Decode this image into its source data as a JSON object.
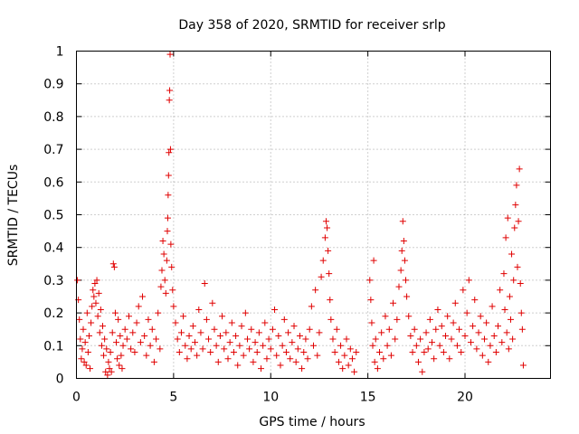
{
  "chart_data": {
    "type": "scatter",
    "title": "Day 358 of 2020, SRMTID for receiver srlp",
    "xlabel": "GPS time / hours",
    "ylabel": "SRMTID / TECUs",
    "xlim": [
      0,
      24.4
    ],
    "ylim": [
      0,
      1
    ],
    "x_ticks": [
      0,
      5,
      10,
      15,
      20
    ],
    "x_tick_labels": [
      "0",
      "5",
      "10",
      "15",
      "20"
    ],
    "y_ticks": [
      0,
      0.1,
      0.2,
      0.3,
      0.4,
      0.5,
      0.6,
      0.7,
      0.8,
      0.9,
      1
    ],
    "y_tick_labels": [
      "0",
      "0.1",
      "0.2",
      "0.3",
      "0.4",
      "0.5",
      "0.6",
      "0.7",
      "0.8",
      "0.9",
      "1"
    ],
    "grid": true,
    "marker": "+",
    "marker_color": "#e00000",
    "series": [
      {
        "name": "SRMTID",
        "points": [
          [
            0.05,
            0.3
          ],
          [
            0.1,
            0.24
          ],
          [
            0.15,
            0.18
          ],
          [
            0.2,
            0.12
          ],
          [
            0.25,
            0.06
          ],
          [
            0.3,
            0.09
          ],
          [
            0.35,
            0.15
          ],
          [
            0.4,
            0.05
          ],
          [
            0.45,
            0.11
          ],
          [
            0.5,
            0.04
          ],
          [
            0.55,
            0.2
          ],
          [
            0.6,
            0.08
          ],
          [
            0.65,
            0.13
          ],
          [
            0.7,
            0.03
          ],
          [
            0.75,
            0.17
          ],
          [
            0.8,
            0.22
          ],
          [
            0.85,
            0.27
          ],
          [
            0.9,
            0.25
          ],
          [
            0.95,
            0.29
          ],
          [
            1.0,
            0.23
          ],
          [
            1.05,
            0.3
          ],
          [
            1.1,
            0.19
          ],
          [
            1.15,
            0.26
          ],
          [
            1.2,
            0.14
          ],
          [
            1.25,
            0.21
          ],
          [
            1.3,
            0.1
          ],
          [
            1.35,
            0.16
          ],
          [
            1.4,
            0.07
          ],
          [
            1.45,
            0.12
          ],
          [
            1.5,
            0.02
          ],
          [
            1.55,
            0.09
          ],
          [
            1.6,
            0.01
          ],
          [
            1.65,
            0.05
          ],
          [
            1.7,
            0.03
          ],
          [
            1.75,
            0.08
          ],
          [
            1.8,
            0.02
          ],
          [
            1.85,
            0.14
          ],
          [
            1.9,
            0.35
          ],
          [
            1.95,
            0.34
          ],
          [
            2.0,
            0.2
          ],
          [
            2.05,
            0.11
          ],
          [
            2.1,
            0.06
          ],
          [
            2.15,
            0.18
          ],
          [
            2.2,
            0.04
          ],
          [
            2.25,
            0.13
          ],
          [
            2.3,
            0.07
          ],
          [
            2.35,
            0.03
          ],
          [
            2.4,
            0.1
          ],
          [
            2.5,
            0.15
          ],
          [
            2.6,
            0.12
          ],
          [
            2.7,
            0.19
          ],
          [
            2.8,
            0.09
          ],
          [
            2.9,
            0.14
          ],
          [
            3.0,
            0.08
          ],
          [
            3.1,
            0.17
          ],
          [
            3.2,
            0.22
          ],
          [
            3.3,
            0.11
          ],
          [
            3.4,
            0.25
          ],
          [
            3.5,
            0.13
          ],
          [
            3.6,
            0.07
          ],
          [
            3.7,
            0.18
          ],
          [
            3.8,
            0.1
          ],
          [
            3.9,
            0.15
          ],
          [
            4.0,
            0.05
          ],
          [
            4.1,
            0.12
          ],
          [
            4.2,
            0.2
          ],
          [
            4.3,
            0.09
          ],
          [
            4.35,
            0.28
          ],
          [
            4.4,
            0.33
          ],
          [
            4.45,
            0.42
          ],
          [
            4.5,
            0.38
          ],
          [
            4.55,
            0.3
          ],
          [
            4.6,
            0.26
          ],
          [
            4.65,
            0.36
          ],
          [
            4.68,
            0.45
          ],
          [
            4.7,
            0.49
          ],
          [
            4.72,
            0.56
          ],
          [
            4.74,
            0.62
          ],
          [
            4.76,
            0.69
          ],
          [
            4.78,
            0.85
          ],
          [
            4.8,
            0.88
          ],
          [
            4.82,
            0.99
          ],
          [
            4.84,
            0.7
          ],
          [
            4.86,
            0.41
          ],
          [
            4.9,
            0.34
          ],
          [
            4.95,
            0.27
          ],
          [
            5.0,
            0.22
          ],
          [
            5.1,
            0.17
          ],
          [
            5.2,
            0.12
          ],
          [
            5.3,
            0.08
          ],
          [
            5.4,
            0.14
          ],
          [
            5.5,
            0.19
          ],
          [
            5.6,
            0.1
          ],
          [
            5.7,
            0.06
          ],
          [
            5.8,
            0.13
          ],
          [
            5.9,
            0.09
          ],
          [
            6.0,
            0.16
          ],
          [
            6.1,
            0.11
          ],
          [
            6.2,
            0.07
          ],
          [
            6.3,
            0.21
          ],
          [
            6.4,
            0.14
          ],
          [
            6.5,
            0.09
          ],
          [
            6.6,
            0.29
          ],
          [
            6.7,
            0.18
          ],
          [
            6.8,
            0.12
          ],
          [
            6.9,
            0.08
          ],
          [
            7.0,
            0.23
          ],
          [
            7.1,
            0.15
          ],
          [
            7.2,
            0.1
          ],
          [
            7.3,
            0.05
          ],
          [
            7.4,
            0.13
          ],
          [
            7.5,
            0.19
          ],
          [
            7.6,
            0.09
          ],
          [
            7.7,
            0.14
          ],
          [
            7.8,
            0.06
          ],
          [
            7.9,
            0.11
          ],
          [
            8.0,
            0.17
          ],
          [
            8.1,
            0.08
          ],
          [
            8.2,
            0.13
          ],
          [
            8.3,
            0.04
          ],
          [
            8.4,
            0.1
          ],
          [
            8.5,
            0.16
          ],
          [
            8.6,
            0.07
          ],
          [
            8.7,
            0.2
          ],
          [
            8.8,
            0.12
          ],
          [
            8.9,
            0.09
          ],
          [
            9.0,
            0.15
          ],
          [
            9.1,
            0.05
          ],
          [
            9.2,
            0.11
          ],
          [
            9.3,
            0.08
          ],
          [
            9.4,
            0.14
          ],
          [
            9.5,
            0.03
          ],
          [
            9.6,
            0.1
          ],
          [
            9.7,
            0.17
          ],
          [
            9.8,
            0.06
          ],
          [
            9.9,
            0.12
          ],
          [
            10.0,
            0.09
          ],
          [
            10.1,
            0.15
          ],
          [
            10.2,
            0.21
          ],
          [
            10.3,
            0.07
          ],
          [
            10.4,
            0.13
          ],
          [
            10.5,
            0.04
          ],
          [
            10.6,
            0.1
          ],
          [
            10.7,
            0.18
          ],
          [
            10.8,
            0.08
          ],
          [
            10.9,
            0.14
          ],
          [
            11.0,
            0.06
          ],
          [
            11.1,
            0.11
          ],
          [
            11.2,
            0.16
          ],
          [
            11.3,
            0.05
          ],
          [
            11.4,
            0.09
          ],
          [
            11.5,
            0.13
          ],
          [
            11.6,
            0.03
          ],
          [
            11.7,
            0.08
          ],
          [
            11.8,
            0.12
          ],
          [
            11.9,
            0.06
          ],
          [
            12.0,
            0.15
          ],
          [
            12.1,
            0.22
          ],
          [
            12.2,
            0.1
          ],
          [
            12.3,
            0.27
          ],
          [
            12.4,
            0.07
          ],
          [
            12.5,
            0.14
          ],
          [
            12.6,
            0.31
          ],
          [
            12.7,
            0.36
          ],
          [
            12.8,
            0.43
          ],
          [
            12.85,
            0.48
          ],
          [
            12.9,
            0.46
          ],
          [
            12.95,
            0.39
          ],
          [
            13.0,
            0.32
          ],
          [
            13.05,
            0.24
          ],
          [
            13.1,
            0.18
          ],
          [
            13.2,
            0.12
          ],
          [
            13.3,
            0.08
          ],
          [
            13.4,
            0.15
          ],
          [
            13.5,
            0.05
          ],
          [
            13.6,
            0.1
          ],
          [
            13.7,
            0.03
          ],
          [
            13.8,
            0.07
          ],
          [
            13.9,
            0.12
          ],
          [
            14.0,
            0.04
          ],
          [
            14.1,
            0.09
          ],
          [
            14.2,
            0.06
          ],
          [
            14.3,
            0.02
          ],
          [
            14.4,
            0.08
          ],
          [
            15.1,
            0.3
          ],
          [
            15.15,
            0.24
          ],
          [
            15.2,
            0.17
          ],
          [
            15.25,
            0.1
          ],
          [
            15.3,
            0.36
          ],
          [
            15.35,
            0.05
          ],
          [
            15.4,
            0.12
          ],
          [
            15.5,
            0.03
          ],
          [
            15.6,
            0.08
          ],
          [
            15.7,
            0.14
          ],
          [
            15.8,
            0.06
          ],
          [
            15.9,
            0.19
          ],
          [
            16.0,
            0.1
          ],
          [
            16.1,
            0.15
          ],
          [
            16.2,
            0.07
          ],
          [
            16.3,
            0.23
          ],
          [
            16.4,
            0.12
          ],
          [
            16.5,
            0.18
          ],
          [
            16.6,
            0.28
          ],
          [
            16.7,
            0.33
          ],
          [
            16.75,
            0.39
          ],
          [
            16.8,
            0.48
          ],
          [
            16.85,
            0.42
          ],
          [
            16.9,
            0.36
          ],
          [
            16.95,
            0.3
          ],
          [
            17.0,
            0.25
          ],
          [
            17.1,
            0.19
          ],
          [
            17.2,
            0.13
          ],
          [
            17.3,
            0.08
          ],
          [
            17.4,
            0.15
          ],
          [
            17.5,
            0.1
          ],
          [
            17.6,
            0.05
          ],
          [
            17.7,
            0.12
          ],
          [
            17.8,
            0.02
          ],
          [
            17.9,
            0.08
          ],
          [
            18.0,
            0.14
          ],
          [
            18.1,
            0.09
          ],
          [
            18.2,
            0.18
          ],
          [
            18.3,
            0.11
          ],
          [
            18.4,
            0.06
          ],
          [
            18.5,
            0.15
          ],
          [
            18.6,
            0.21
          ],
          [
            18.7,
            0.1
          ],
          [
            18.8,
            0.16
          ],
          [
            18.9,
            0.08
          ],
          [
            19.0,
            0.13
          ],
          [
            19.1,
            0.19
          ],
          [
            19.2,
            0.06
          ],
          [
            19.3,
            0.12
          ],
          [
            19.4,
            0.17
          ],
          [
            19.5,
            0.23
          ],
          [
            19.6,
            0.1
          ],
          [
            19.7,
            0.15
          ],
          [
            19.8,
            0.08
          ],
          [
            19.9,
            0.27
          ],
          [
            20.0,
            0.13
          ],
          [
            20.1,
            0.2
          ],
          [
            20.2,
            0.3
          ],
          [
            20.3,
            0.11
          ],
          [
            20.4,
            0.16
          ],
          [
            20.5,
            0.24
          ],
          [
            20.6,
            0.09
          ],
          [
            20.7,
            0.14
          ],
          [
            20.8,
            0.19
          ],
          [
            20.9,
            0.07
          ],
          [
            21.0,
            0.12
          ],
          [
            21.1,
            0.17
          ],
          [
            21.2,
            0.05
          ],
          [
            21.3,
            0.1
          ],
          [
            21.4,
            0.22
          ],
          [
            21.5,
            0.13
          ],
          [
            21.6,
            0.08
          ],
          [
            21.7,
            0.16
          ],
          [
            21.8,
            0.27
          ],
          [
            21.9,
            0.11
          ],
          [
            22.0,
            0.32
          ],
          [
            22.05,
            0.21
          ],
          [
            22.1,
            0.43
          ],
          [
            22.15,
            0.14
          ],
          [
            22.2,
            0.49
          ],
          [
            22.25,
            0.09
          ],
          [
            22.3,
            0.25
          ],
          [
            22.35,
            0.18
          ],
          [
            22.4,
            0.38
          ],
          [
            22.45,
            0.12
          ],
          [
            22.5,
            0.3
          ],
          [
            22.55,
            0.46
          ],
          [
            22.6,
            0.53
          ],
          [
            22.65,
            0.59
          ],
          [
            22.7,
            0.34
          ],
          [
            22.75,
            0.48
          ],
          [
            22.8,
            0.64
          ],
          [
            22.85,
            0.29
          ],
          [
            22.9,
            0.2
          ],
          [
            22.95,
            0.15
          ],
          [
            23.0,
            0.04
          ]
        ]
      }
    ]
  }
}
